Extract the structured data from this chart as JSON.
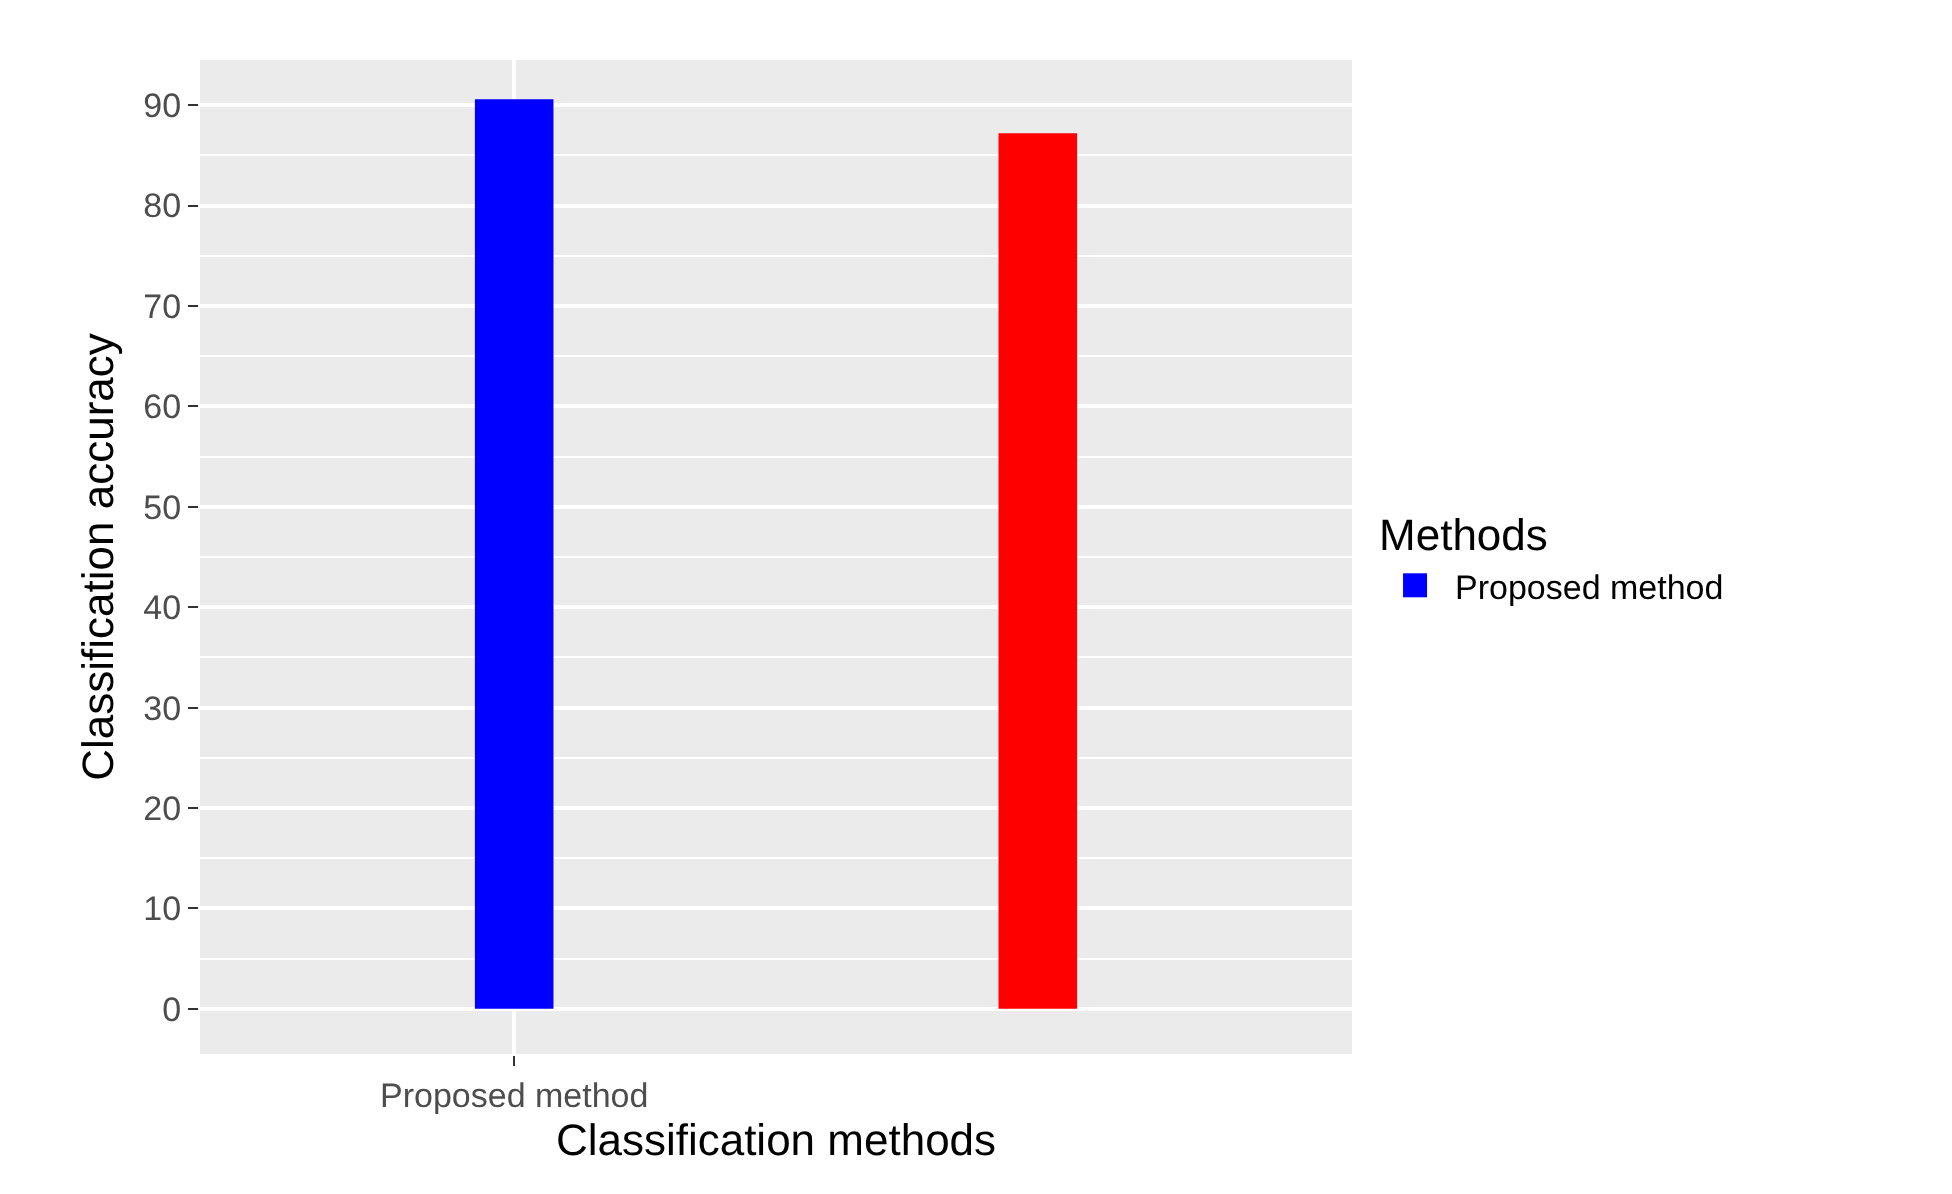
{
  "chart_data": {
    "type": "bar",
    "xlabel": "Classification methods",
    "ylabel": "Classification accuracy",
    "legend_title": "Methods",
    "categories": [
      "Proposed method",
      null
    ],
    "series": [
      {
        "name": "Proposed method",
        "color": "#0000ff",
        "values": [
          90.6,
          null
        ]
      },
      {
        "color": "#ff0000",
        "values": [
          null,
          87.2
        ]
      }
    ],
    "ylim": [
      -4.5,
      94.5
    ],
    "yticks": [
      0,
      10,
      20,
      30,
      40,
      50,
      60,
      70,
      80,
      90
    ],
    "grid": true,
    "legend": "right"
  }
}
